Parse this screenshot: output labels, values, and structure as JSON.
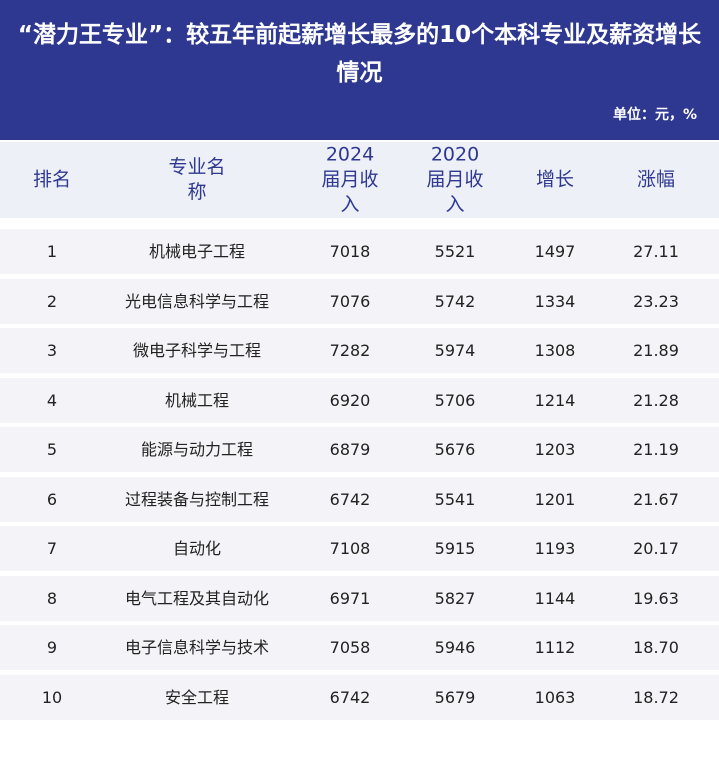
{
  "header": {
    "title": "“潜力王专业”：较五年前起薪增长最多的10个本科专业及薪资增长情况",
    "unit": "单位：元，%"
  },
  "table": {
    "columns": [
      "排名",
      "专业名称",
      "2024届月收入",
      "2020届月收入",
      "增长",
      "涨幅"
    ],
    "rows": [
      [
        "1",
        "机械电子工程",
        "7018",
        "5521",
        "1497",
        "27.11"
      ],
      [
        "2",
        "光电信息科学与工程",
        "7076",
        "5742",
        "1334",
        "23.23"
      ],
      [
        "3",
        "微电子科学与工程",
        "7282",
        "5974",
        "1308",
        "21.89"
      ],
      [
        "4",
        "机械工程",
        "6920",
        "5706",
        "1214",
        "21.28"
      ],
      [
        "5",
        "能源与动力工程",
        "6879",
        "5676",
        "1203",
        "21.19"
      ],
      [
        "6",
        "过程装备与控制工程",
        "6742",
        "5541",
        "1201",
        "21.67"
      ],
      [
        "7",
        "自动化",
        "7108",
        "5915",
        "1193",
        "20.17"
      ],
      [
        "8",
        "电气工程及其自动化",
        "6971",
        "5827",
        "1144",
        "19.63"
      ],
      [
        "9",
        "电子信息科学与技术",
        "7058",
        "5946",
        "1112",
        "18.70"
      ],
      [
        "10",
        "安全工程",
        "6742",
        "5679",
        "1063",
        "18.72"
      ]
    ]
  }
}
